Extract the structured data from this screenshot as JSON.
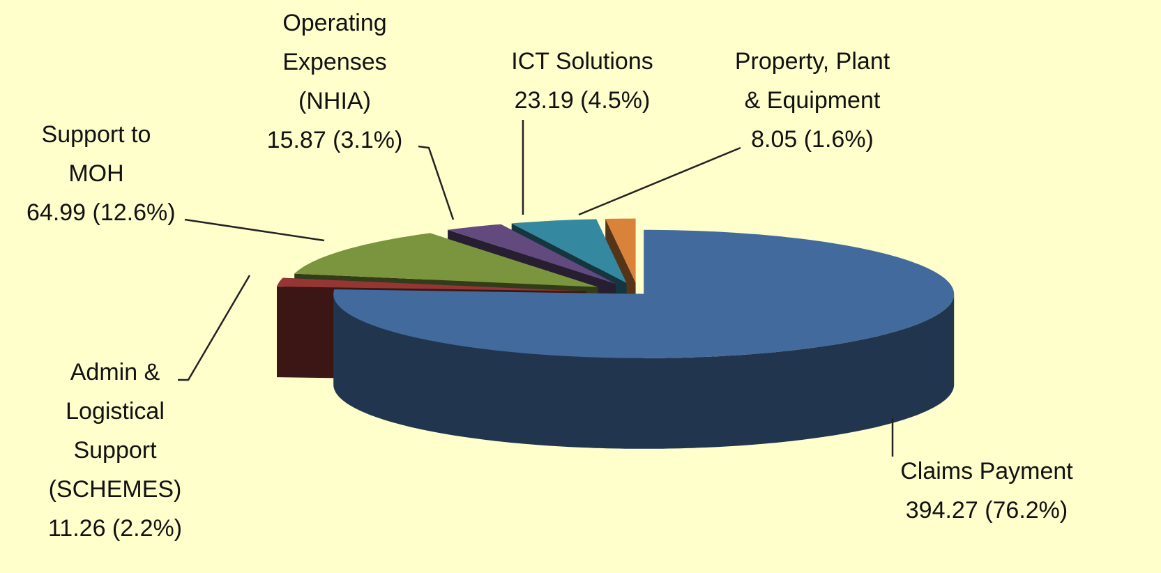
{
  "chart_data": {
    "type": "pie3d",
    "categories": [
      "Claims Payment",
      "Admin & Logistical Support (SCHEMES)",
      "Support to MOH",
      "Operating Expenses (NHIA)",
      "ICT Solutions",
      "Property, Plant & Equipment"
    ],
    "values": [
      394.27,
      11.26,
      64.99,
      15.87,
      23.19,
      8.05
    ],
    "value_labels": [
      "394.27 (76.2%)",
      "11.26 (2.2%)",
      "64.99 (12.6%)",
      "15.87 (3.1%)",
      "23.19 (4.5%)",
      "8.05 (1.6%)"
    ],
    "colors": [
      "#426a9c",
      "#943634",
      "#7a953d",
      "#624a7e",
      "#34889f",
      "#d8823a"
    ]
  }
}
